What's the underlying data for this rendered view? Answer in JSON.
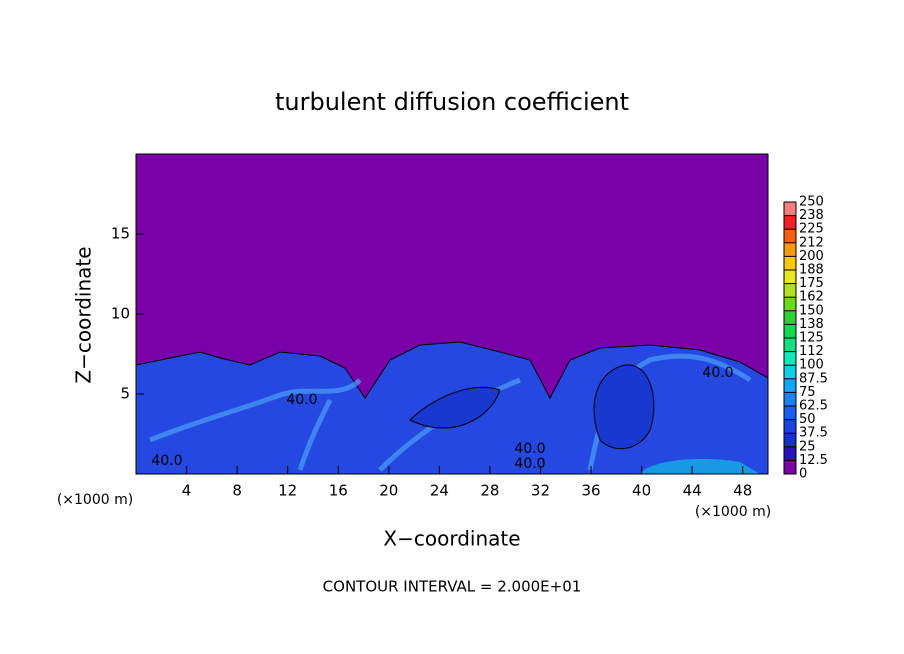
{
  "chart_data": {
    "type": "contour",
    "title": "turbulent diffusion coefficient",
    "x_label": "X−coordinate",
    "y_label": "Z−coordinate",
    "x_unit": "(×1000 m)",
    "y_unit": "(×1000 m)",
    "footer": "CONTOUR INTERVAL = 2.000E+01",
    "xlim": [
      0,
      50
    ],
    "ylim": [
      0,
      20
    ],
    "xticks": [
      4,
      8,
      12,
      16,
      20,
      24,
      28,
      32,
      36,
      40,
      44,
      48
    ],
    "yticks": [
      5,
      10,
      15
    ],
    "contour_labels": [
      "40.0",
      "40.0",
      "40.0",
      "40.0",
      "40.0"
    ],
    "colorbar": {
      "levels": [
        0,
        12.5,
        25,
        37.5,
        50,
        62.5,
        75,
        87.5,
        100,
        {
          "value": 112.5,
          "label": "112"
        },
        125,
        {
          "value": 137.5,
          "label": "138"
        },
        150,
        {
          "value": 162.5,
          "label": "162"
        },
        175,
        {
          "value": 187.5,
          "label": "188"
        },
        200,
        {
          "value": 212.5,
          "label": "212"
        },
        225,
        {
          "value": 237.5,
          "label": "238"
        },
        250
      ],
      "colors": [
        "#7a00a8",
        "#2a10b8",
        "#1830d0",
        "#2040e8",
        "#1c5cf4",
        "#1c80f8",
        "#10a8f4",
        "#10d0e8",
        "#10e8b8",
        "#10e080",
        "#18d850",
        "#30d030",
        "#70d820",
        "#b0e020",
        "#e8e820",
        "#f8c810",
        "#f89810",
        "#f86010",
        "#f82020",
        "#f08080"
      ]
    }
  }
}
